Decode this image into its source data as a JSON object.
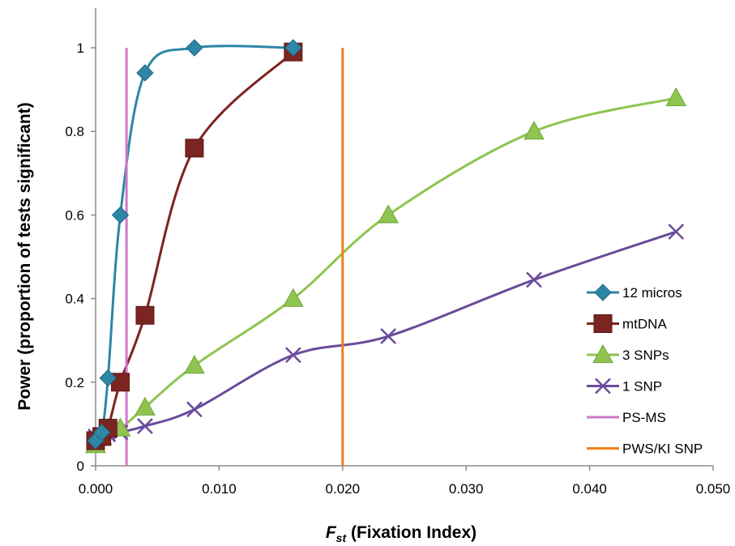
{
  "chart_data": {
    "type": "line",
    "xlabel_main": "F",
    "xlabel_sub": "st",
    "xlabel_rest": " (Fixation Index)",
    "ylabel": "Power (proportion of tests significant)",
    "xlim": [
      0,
      0.05
    ],
    "ylim": [
      0,
      1
    ],
    "x_ticks": [
      0,
      0.01,
      0.02,
      0.03,
      0.04,
      0.05
    ],
    "x_tick_labels": [
      "0.000",
      "0.010",
      "0.020",
      "0.030",
      "0.040",
      "0.050"
    ],
    "y_ticks": [
      0,
      0.2,
      0.4,
      0.6,
      0.8,
      1
    ],
    "y_tick_labels": [
      "0",
      "0.2",
      "0.4",
      "0.6",
      "0.8",
      "1"
    ],
    "grid": false,
    "legend_position": "right",
    "series": [
      {
        "name": "12 micros",
        "color": "#2e86a6",
        "marker": "diamond",
        "x": [
          0,
          0.0005,
          0.001,
          0.002,
          0.004,
          0.008,
          0.016
        ],
        "y": [
          0.06,
          0.08,
          0.21,
          0.6,
          0.94,
          1.0,
          1.0
        ]
      },
      {
        "name": "mtDNA",
        "color": "#7b2421",
        "marker": "square",
        "x": [
          0,
          0.0005,
          0.001,
          0.002,
          0.004,
          0.008,
          0.016
        ],
        "y": [
          0.06,
          0.07,
          0.09,
          0.2,
          0.36,
          0.76,
          0.99
        ]
      },
      {
        "name": "3 SNPs",
        "color": "#8fc44f",
        "marker": "triangle",
        "x": [
          0,
          0.0005,
          0.001,
          0.002,
          0.004,
          0.008,
          0.016,
          0.0237,
          0.0355,
          0.047
        ],
        "y": [
          0.05,
          0.07,
          0.09,
          0.09,
          0.14,
          0.24,
          0.4,
          0.6,
          0.8,
          0.88
        ]
      },
      {
        "name": "1 SNP",
        "color": "#6a4b9a",
        "marker": "x",
        "x": [
          0,
          0.0005,
          0.001,
          0.002,
          0.004,
          0.008,
          0.016,
          0.0237,
          0.0355,
          0.047
        ],
        "y": [
          0.07,
          0.07,
          0.075,
          0.08,
          0.095,
          0.135,
          0.265,
          0.31,
          0.445,
          0.56
        ]
      }
    ],
    "vlines": [
      {
        "name": "PS-MS",
        "color": "#cf78c8",
        "x": 0.0025
      },
      {
        "name": "PWS/KI SNP",
        "color": "#f07f1a",
        "x": 0.02
      }
    ]
  }
}
